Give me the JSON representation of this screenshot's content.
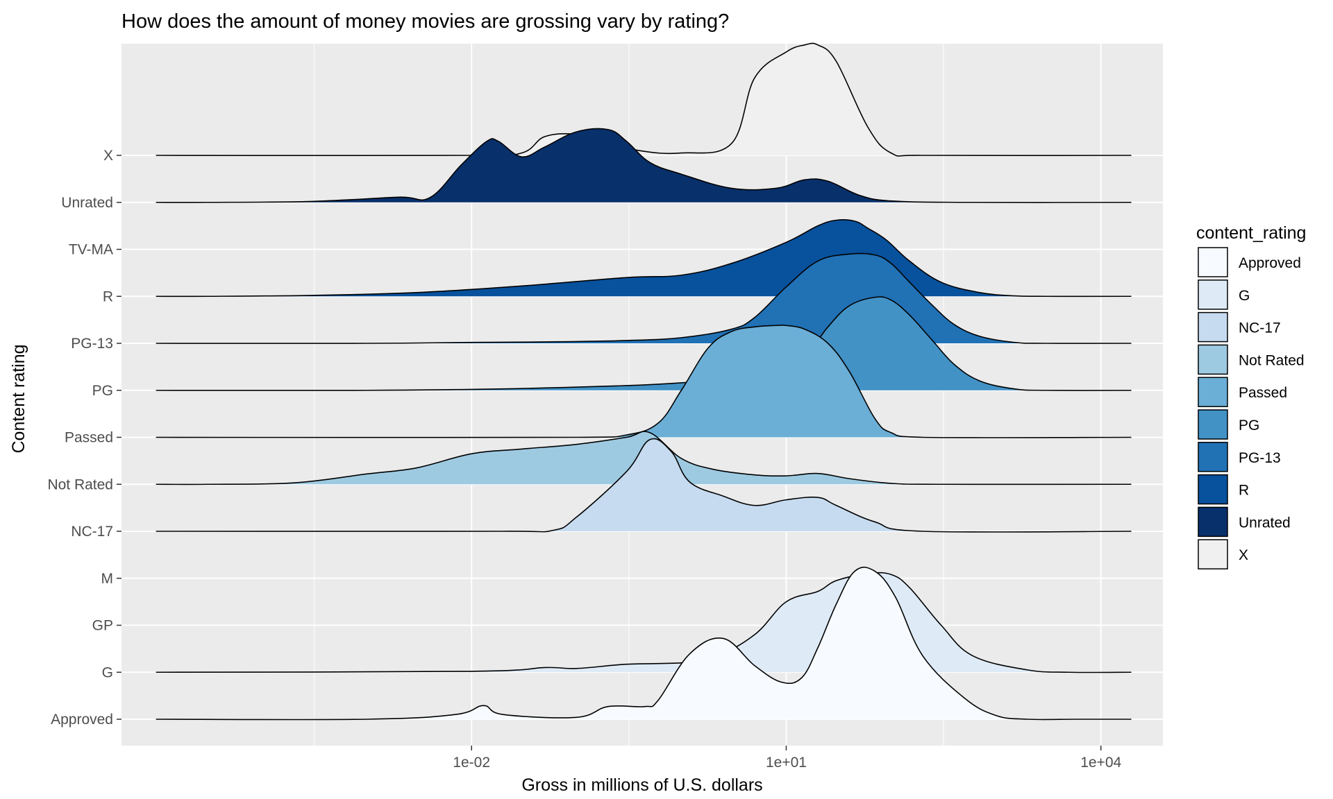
{
  "chart_data": {
    "type": "ridgeline density",
    "title": "How does the amount of money movies are grossing vary by rating?",
    "xlabel": "Gross in millions of U.S. dollars",
    "ylabel": "Content rating",
    "x_scale": "log10",
    "x_ticks": [
      {
        "value": 0.01,
        "label": "1e-02"
      },
      {
        "value": 10,
        "label": "1e+01"
      },
      {
        "value": 10000,
        "label": "1e+04"
      }
    ],
    "xlim": [
      4.6e-06,
      39000
    ],
    "categories": [
      "Approved",
      "G",
      "GP",
      "M",
      "NC-17",
      "Not Rated",
      "Passed",
      "PG",
      "PG-13",
      "R",
      "TV-MA",
      "Unrated",
      "X"
    ],
    "legend": {
      "title": "content_rating",
      "position": "right",
      "items": [
        {
          "label": "Approved",
          "color": "#f7fbff"
        },
        {
          "label": "G",
          "color": "#deebf7"
        },
        {
          "label": "NC-17",
          "color": "#c6dbef"
        },
        {
          "label": "Not Rated",
          "color": "#9ecae1"
        },
        {
          "label": "Passed",
          "color": "#6baed6"
        },
        {
          "label": "PG",
          "color": "#4292c6"
        },
        {
          "label": "PG-13",
          "color": "#2171b5"
        },
        {
          "label": "R",
          "color": "#08519c"
        },
        {
          "label": "Unrated",
          "color": "#08306b"
        },
        {
          "label": "X",
          "color": "#f0f0f0"
        }
      ]
    },
    "series": [
      {
        "name": "Approved",
        "color": "#f7fbff",
        "baseline": "Approved",
        "x": [
          9.8e-06,
          0.001,
          0.007,
          0.013,
          0.02,
          0.1,
          0.2,
          0.45,
          0.6,
          1.2,
          2.5,
          5,
          9,
          14,
          20,
          30,
          45,
          70,
          110,
          200,
          500,
          1000,
          2000,
          6000,
          19500
        ],
        "y": [
          0,
          0,
          0.1,
          0.29,
          0.1,
          0.04,
          0.27,
          0.27,
          0.4,
          1.39,
          1.72,
          1.14,
          0.79,
          0.88,
          1.52,
          2.45,
          3.15,
          3.15,
          2.6,
          1.35,
          0.45,
          0.08,
          0,
          0,
          0
        ]
      },
      {
        "name": "G",
        "color": "#deebf7",
        "baseline": "G",
        "x": [
          9.8e-06,
          0.01,
          0.05,
          0.1,
          0.3,
          1,
          2,
          5,
          10,
          20,
          30,
          60,
          100,
          150,
          300,
          600,
          2000,
          5000,
          19500
        ],
        "y": [
          0,
          0.02,
          0.1,
          0.08,
          0.17,
          0.2,
          0.3,
          0.8,
          1.5,
          1.72,
          1.95,
          2.1,
          2.08,
          1.8,
          1.0,
          0.35,
          0.05,
          0,
          0
        ]
      },
      {
        "name": "NC-17",
        "color": "#c6dbef",
        "baseline": "NC-17",
        "x": [
          9.8e-06,
          0.02,
          0.06,
          0.1,
          0.3,
          0.5,
          0.8,
          1.2,
          2.5,
          5,
          10,
          20,
          30,
          70,
          200,
          19500
        ],
        "y": [
          0,
          0,
          0.02,
          0.3,
          1.27,
          1.95,
          1.7,
          1.05,
          0.75,
          0.55,
          0.67,
          0.72,
          0.55,
          0.2,
          0,
          0
        ]
      },
      {
        "name": "Not Rated",
        "color": "#9ecae1",
        "baseline": "Not Rated",
        "x": [
          9.8e-06,
          3e-05,
          0.0002,
          0.001,
          0.003,
          0.01,
          0.03,
          0.1,
          0.3,
          0.5,
          1,
          2,
          5,
          10,
          20,
          40,
          100,
          300,
          19500
        ],
        "y": [
          0,
          0,
          0.03,
          0.22,
          0.35,
          0.65,
          0.75,
          0.85,
          1.0,
          1.1,
          0.55,
          0.32,
          0.2,
          0.18,
          0.23,
          0.12,
          0.02,
          0,
          0
        ]
      },
      {
        "name": "Passed",
        "color": "#6baed6",
        "baseline": "Passed",
        "x": [
          9.8e-06,
          0.1,
          0.3,
          0.6,
          1,
          1.8,
          3,
          5,
          8,
          10,
          15,
          25,
          40,
          70,
          100,
          200,
          19500
        ],
        "y": [
          0,
          0,
          0.05,
          0.3,
          1.0,
          1.9,
          2.25,
          2.35,
          2.38,
          2.38,
          2.3,
          2.0,
          1.4,
          0.4,
          0.1,
          0,
          0
        ]
      },
      {
        "name": "PG",
        "color": "#4292c6",
        "baseline": "PG",
        "x": [
          9.8e-06,
          0.001,
          0.01,
          0.05,
          0.3,
          1,
          3,
          8,
          15,
          25,
          40,
          70,
          100,
          150,
          250,
          400,
          700,
          1500,
          3000,
          19500
        ],
        "y": [
          0,
          0,
          0.02,
          0.05,
          0.1,
          0.16,
          0.25,
          0.38,
          0.72,
          1.35,
          1.8,
          1.98,
          1.92,
          1.6,
          1.05,
          0.55,
          0.2,
          0.03,
          0,
          0
        ]
      },
      {
        "name": "PG-13",
        "color": "#2171b5",
        "baseline": "PG-13",
        "x": [
          9.8e-06,
          0.001,
          0.01,
          0.05,
          0.3,
          1,
          3,
          5,
          10,
          20,
          40,
          70,
          100,
          150,
          250,
          400,
          700,
          1500,
          3000,
          19500
        ],
        "y": [
          0,
          0,
          0.02,
          0.03,
          0.06,
          0.12,
          0.3,
          0.55,
          1.2,
          1.75,
          1.9,
          1.88,
          1.7,
          1.3,
          0.8,
          0.4,
          0.15,
          0.02,
          0,
          0
        ]
      },
      {
        "name": "R",
        "color": "#08519c",
        "baseline": "R",
        "x": [
          9.8e-06,
          3e-05,
          0.0003,
          0.003,
          0.03,
          0.3,
          1,
          3,
          10,
          20,
          30,
          45,
          60,
          90,
          150,
          300,
          700,
          1500,
          3000,
          19500
        ],
        "y": [
          0,
          0,
          0.02,
          0.08,
          0.22,
          0.4,
          0.45,
          0.7,
          1.15,
          1.5,
          1.62,
          1.6,
          1.45,
          1.2,
          0.75,
          0.3,
          0.08,
          0.01,
          0,
          0
        ]
      },
      {
        "name": "Unrated",
        "color": "#08306b",
        "baseline": "Unrated",
        "x": [
          9.8e-06,
          3e-05,
          0.0003,
          0.002,
          0.004,
          0.008,
          0.014,
          0.018,
          0.03,
          0.05,
          0.1,
          0.2,
          0.3,
          0.5,
          1,
          3,
          8,
          15,
          25,
          50,
          100,
          500,
          19500
        ],
        "y": [
          0,
          0,
          0.02,
          0.11,
          0.1,
          0.8,
          1.3,
          1.3,
          0.97,
          1.18,
          1.5,
          1.55,
          1.3,
          0.85,
          0.6,
          0.3,
          0.3,
          0.48,
          0.45,
          0.15,
          0.03,
          0,
          0
        ]
      },
      {
        "name": "X",
        "color": "#f0f0f0",
        "baseline": "X",
        "x": [
          9.8e-06,
          0.01,
          0.03,
          0.05,
          0.1,
          0.2,
          0.4,
          1,
          3,
          5,
          10,
          15,
          20,
          30,
          60,
          100,
          200,
          19500
        ],
        "y": [
          0,
          0,
          0.05,
          0.4,
          0.45,
          0.3,
          0.1,
          0.05,
          0.25,
          1.65,
          2.2,
          2.35,
          2.35,
          2.0,
          0.6,
          0.05,
          0,
          0
        ]
      }
    ]
  }
}
